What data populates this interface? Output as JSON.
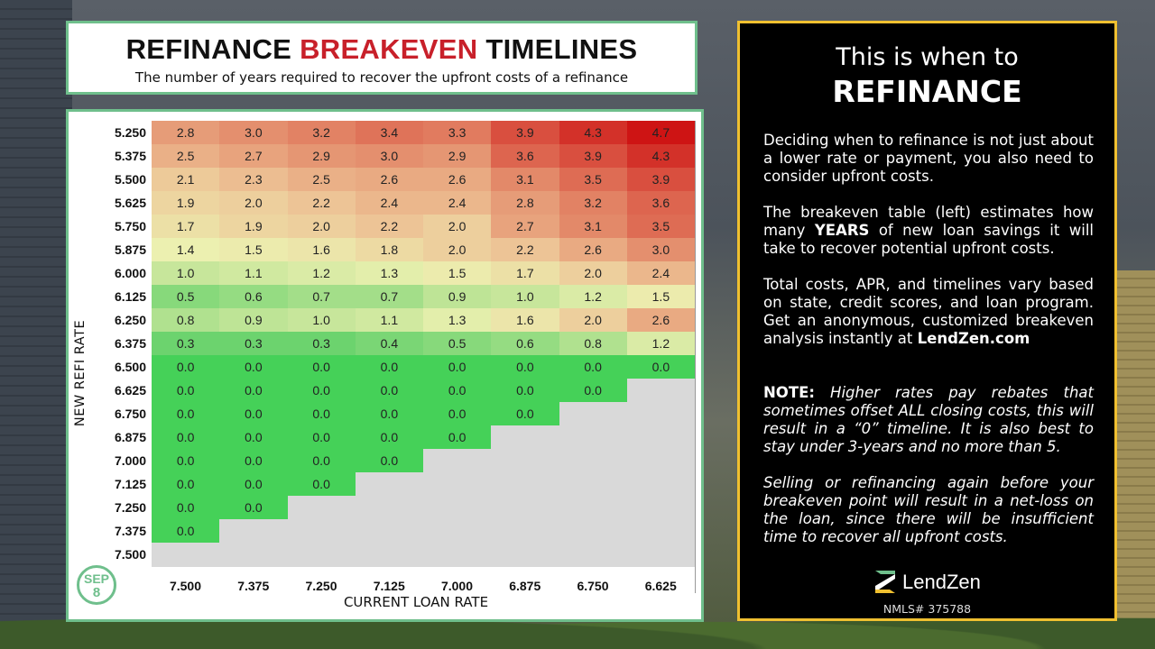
{
  "title": {
    "part1": "REFINANCE",
    "part2": "BREAKEVEN",
    "part3": "TIMELINES",
    "subtitle": "The number of years required to recover the upfront costs of a refinance"
  },
  "badge": {
    "month": "SEP",
    "day": "8"
  },
  "colors": {
    "accent_green": "#6fbf8c",
    "panel_border": "#f0c030",
    "title_red": "#c8202a",
    "zero_green": "#45d158",
    "empty_gray": "#d9d9d9"
  },
  "chart_data": {
    "type": "heatmap",
    "title": "REFINANCE BREAKEVEN TIMELINES",
    "subtitle": "The number of years required to recover the upfront costs of a refinance",
    "xlabel": "CURRENT LOAN RATE",
    "ylabel": "NEW REFI RATE",
    "x": [
      "7.500",
      "7.375",
      "7.250",
      "7.125",
      "7.000",
      "6.875",
      "6.750",
      "6.625"
    ],
    "y": [
      "5.250",
      "5.375",
      "5.500",
      "5.625",
      "5.750",
      "5.875",
      "6.000",
      "6.125",
      "6.250",
      "6.375",
      "6.500",
      "6.625",
      "6.750",
      "6.875",
      "7.000",
      "7.125",
      "7.250",
      "7.375",
      "7.500"
    ],
    "values": [
      [
        2.8,
        3.0,
        3.2,
        3.4,
        3.3,
        3.9,
        4.3,
        4.7
      ],
      [
        2.5,
        2.7,
        2.9,
        3.0,
        2.9,
        3.6,
        3.9,
        4.3
      ],
      [
        2.1,
        2.3,
        2.5,
        2.6,
        2.6,
        3.1,
        3.5,
        3.9
      ],
      [
        1.9,
        2.0,
        2.2,
        2.4,
        2.4,
        2.8,
        3.2,
        3.6
      ],
      [
        1.7,
        1.9,
        2.0,
        2.2,
        2.0,
        2.7,
        3.1,
        3.5
      ],
      [
        1.4,
        1.5,
        1.6,
        1.8,
        2.0,
        2.2,
        2.6,
        3.0
      ],
      [
        1.0,
        1.1,
        1.2,
        1.3,
        1.5,
        1.7,
        2.0,
        2.4
      ],
      [
        0.5,
        0.6,
        0.7,
        0.7,
        0.9,
        1.0,
        1.2,
        1.5
      ],
      [
        0.8,
        0.9,
        1.0,
        1.1,
        1.3,
        1.6,
        2.0,
        2.6
      ],
      [
        0.3,
        0.3,
        0.3,
        0.4,
        0.5,
        0.6,
        0.8,
        1.2
      ],
      [
        0.0,
        0.0,
        0.0,
        0.0,
        0.0,
        0.0,
        0.0,
        0.0
      ],
      [
        0.0,
        0.0,
        0.0,
        0.0,
        0.0,
        0.0,
        0.0,
        null
      ],
      [
        0.0,
        0.0,
        0.0,
        0.0,
        0.0,
        0.0,
        null,
        null
      ],
      [
        0.0,
        0.0,
        0.0,
        0.0,
        0.0,
        null,
        null,
        null
      ],
      [
        0.0,
        0.0,
        0.0,
        0.0,
        null,
        null,
        null,
        null
      ],
      [
        0.0,
        0.0,
        0.0,
        null,
        null,
        null,
        null,
        null
      ],
      [
        0.0,
        0.0,
        null,
        null,
        null,
        null,
        null,
        null
      ],
      [
        0.0,
        null,
        null,
        null,
        null,
        null,
        null,
        null
      ],
      [
        null,
        null,
        null,
        null,
        null,
        null,
        null,
        null
      ]
    ]
  },
  "panel": {
    "heading1": "This is when to",
    "heading2": "REFINANCE",
    "p1": "Deciding when to refinance is not just about a lower rate or payment, you also need to consider upfront costs.",
    "p2_a": "The breakeven table (left) estimates how many ",
    "p2_b": "YEARS",
    "p2_c": " of new loan savings it will take to recover potential upfront costs.",
    "p3_a": "Total costs, APR, and timelines vary based on state, credit scores, and loan program. Get an anonymous, customized breakeven analysis instantly at ",
    "p3_b": "LendZen.com",
    "note_label": "NOTE:",
    "note_text": " Higher rates pay rebates that sometimes offset ALL closing costs, this will result in a “0” timeline. It is also best to stay under 3-years and no more than 5.",
    "p5": "Selling or refinancing again before your breakeven point will result in a net-loss on the loan, since there will be insufficient time to recover all upfront costs.",
    "brand": "LendZen",
    "nmls": "NMLS# 375788"
  }
}
